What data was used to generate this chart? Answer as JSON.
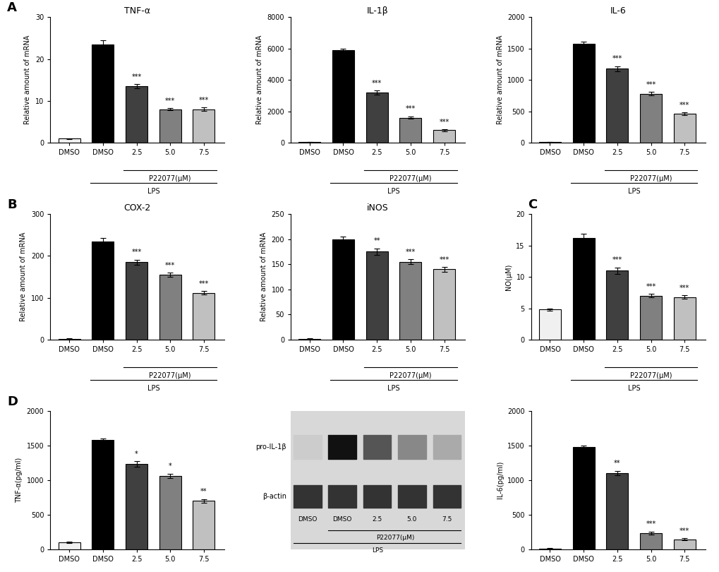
{
  "panel_A": {
    "TNF_alpha": {
      "title": "TNF-α",
      "ylabel": "Relative amount of mRNA",
      "ylim": [
        0,
        30
      ],
      "yticks": [
        0,
        10,
        20,
        30
      ],
      "values": [
        1.0,
        23.5,
        13.5,
        8.0,
        8.0
      ],
      "errors": [
        0.1,
        1.0,
        0.5,
        0.3,
        0.4
      ],
      "colors": [
        "#f0f0f0",
        "#000000",
        "#404040",
        "#808080",
        "#c0c0c0"
      ],
      "sig": [
        "",
        "",
        "***",
        "***",
        "***"
      ]
    },
    "IL_1beta": {
      "title": "IL-1β",
      "ylabel": "Relative amount of mRNA",
      "ylim": [
        0,
        8000
      ],
      "yticks": [
        0,
        2000,
        4000,
        6000,
        8000
      ],
      "values": [
        50,
        5900,
        3200,
        1600,
        800
      ],
      "errors": [
        5,
        100,
        120,
        80,
        60
      ],
      "colors": [
        "#f0f0f0",
        "#000000",
        "#404040",
        "#808080",
        "#c0c0c0"
      ],
      "sig": [
        "",
        "",
        "***",
        "***",
        "***"
      ]
    },
    "IL_6": {
      "title": "IL-6",
      "ylabel": "Relative amount of mRNA",
      "ylim": [
        0,
        2000
      ],
      "yticks": [
        0,
        500,
        1000,
        1500,
        2000
      ],
      "values": [
        10,
        1580,
        1180,
        780,
        460
      ],
      "errors": [
        2,
        25,
        40,
        30,
        20
      ],
      "colors": [
        "#f0f0f0",
        "#000000",
        "#404040",
        "#808080",
        "#c0c0c0"
      ],
      "sig": [
        "",
        "",
        "***",
        "***",
        "***"
      ]
    }
  },
  "panel_B": {
    "COX2": {
      "title": "COX-2",
      "ylabel": "Relative amount of mRNA",
      "ylim": [
        0,
        300
      ],
      "yticks": [
        0,
        100,
        200,
        300
      ],
      "values": [
        2,
        235,
        185,
        155,
        112
      ],
      "errors": [
        0.5,
        8,
        6,
        5,
        4
      ],
      "colors": [
        "#f0f0f0",
        "#000000",
        "#404040",
        "#808080",
        "#c0c0c0"
      ],
      "sig": [
        "",
        "",
        "***",
        "***",
        "***"
      ]
    },
    "iNOS": {
      "title": "iNOS",
      "ylabel": "Relative amount of mRNA",
      "ylim": [
        0,
        250
      ],
      "yticks": [
        0,
        50,
        100,
        150,
        200,
        250
      ],
      "values": [
        2,
        200,
        175,
        155,
        140
      ],
      "errors": [
        0.5,
        5,
        7,
        5,
        5
      ],
      "colors": [
        "#f0f0f0",
        "#000000",
        "#404040",
        "#808080",
        "#c0c0c0"
      ],
      "sig": [
        "",
        "",
        "**",
        "***",
        "***"
      ]
    }
  },
  "panel_C": {
    "NO": {
      "title": "",
      "ylabel": "NO(μM)",
      "ylim": [
        0,
        20
      ],
      "yticks": [
        0,
        5,
        10,
        15,
        20
      ],
      "values": [
        4.8,
        16.2,
        11.0,
        7.0,
        6.8
      ],
      "errors": [
        0.2,
        0.7,
        0.5,
        0.3,
        0.3
      ],
      "colors": [
        "#f0f0f0",
        "#000000",
        "#404040",
        "#808080",
        "#c0c0c0"
      ],
      "sig": [
        "",
        "",
        "***",
        "***",
        "***"
      ]
    }
  },
  "panel_D": {
    "TNF_alpha": {
      "title": "",
      "ylabel": "TNF-α(pg/ml)",
      "ylim": [
        0,
        2000
      ],
      "yticks": [
        0,
        500,
        1000,
        1500,
        2000
      ],
      "values": [
        100,
        1580,
        1230,
        1060,
        700
      ],
      "errors": [
        8,
        20,
        40,
        35,
        25
      ],
      "colors": [
        "#f0f0f0",
        "#000000",
        "#404040",
        "#808080",
        "#c0c0c0"
      ],
      "sig": [
        "",
        "",
        "*",
        "*",
        "**"
      ]
    },
    "IL_6": {
      "title": "",
      "ylabel": "IL-6(pg/ml)",
      "ylim": [
        0,
        2000
      ],
      "yticks": [
        0,
        500,
        1000,
        1500,
        2000
      ],
      "values": [
        10,
        1480,
        1100,
        230,
        140
      ],
      "errors": [
        2,
        20,
        30,
        20,
        15
      ],
      "colors": [
        "#f0f0f0",
        "#000000",
        "#404040",
        "#808080",
        "#c0c0c0"
      ],
      "sig": [
        "",
        "",
        "**",
        "***",
        "***"
      ]
    }
  },
  "x_labels": [
    "DMSO",
    "DMSO",
    "2.5",
    "5.0",
    "7.5"
  ],
  "x_sublabel1": "P22077(μM)",
  "x_sublabel2": "LPS",
  "background_color": "#ffffff",
  "bar_edge_color": "#000000",
  "sig_fontsize": 7,
  "label_fontsize": 7,
  "title_fontsize": 9,
  "tick_fontsize": 7
}
